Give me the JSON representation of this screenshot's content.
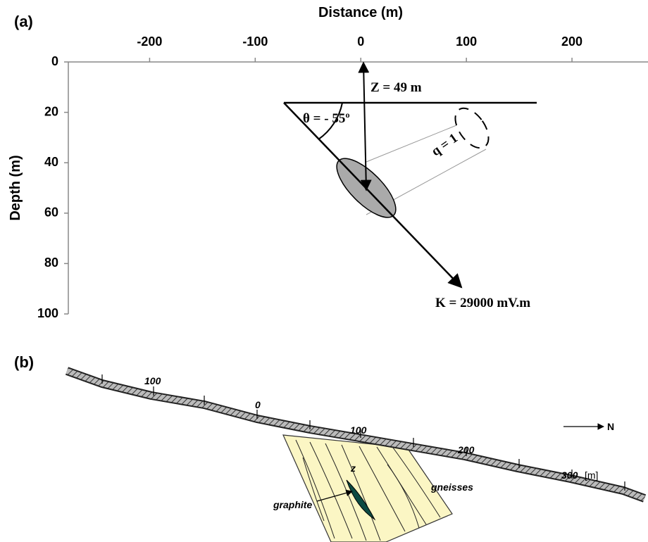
{
  "panel_a": {
    "label": "(a)",
    "x_axis_title": "Distance (m)",
    "y_axis_title": "Depth (m)",
    "xlim": [
      -277,
      272
    ],
    "ylim": [
      0,
      100
    ],
    "xticks": [
      -200,
      -100,
      0,
      100,
      200
    ],
    "yticks": [
      0,
      20,
      40,
      60,
      80,
      100
    ],
    "annotations": {
      "z": "Z = 49 m",
      "theta": "θ = - 55º",
      "q": "q = 1",
      "k": "K = 29000 mV.m"
    }
  },
  "panel_b": {
    "label": "(b)",
    "distance_labels": [
      "100",
      "0",
      "100",
      "200",
      "300"
    ],
    "unit": "[m]",
    "north": "N",
    "z": "z",
    "graphite": "graphite",
    "gneisses": "gneisses"
  }
}
